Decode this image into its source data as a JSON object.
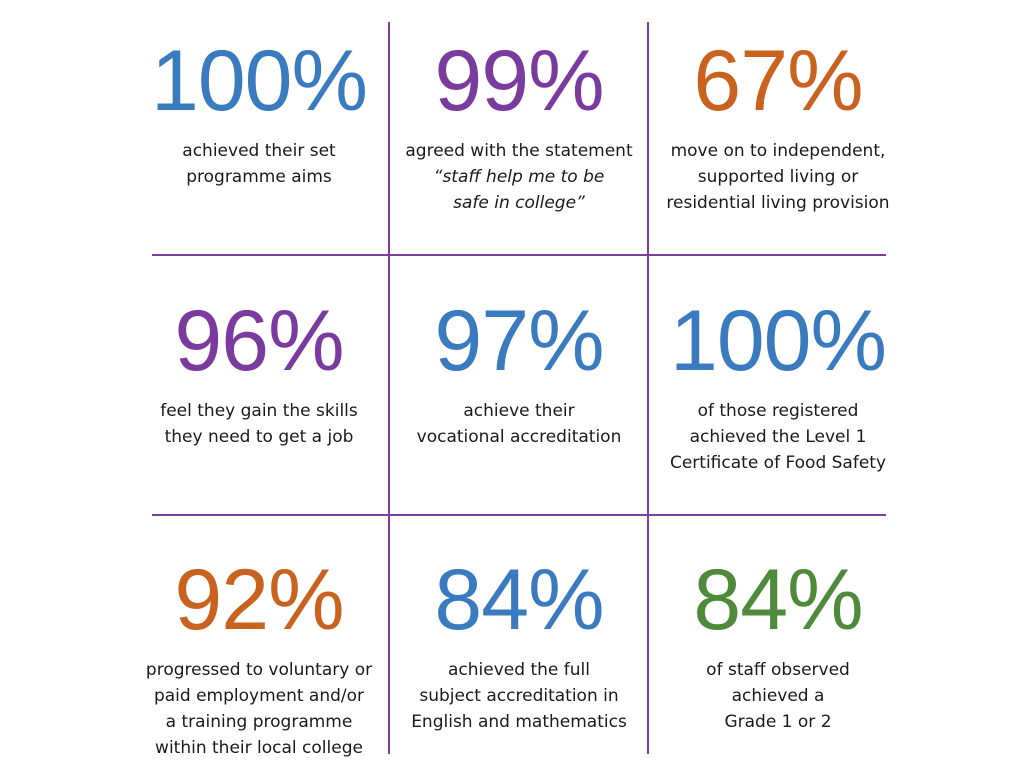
{
  "colors": {
    "divider": "#7a3fa0",
    "blue": "#3a7bbf",
    "purple": "#7b3a9e",
    "orange": "#c8621e",
    "green": "#4e8a3a"
  },
  "cells": [
    {
      "value": "100%",
      "color": "#3a7bbf",
      "lines": [
        "achieved their set",
        "programme aims"
      ]
    },
    {
      "value": "99%",
      "color": "#7b3a9e",
      "lines": [
        "agreed with the statement"
      ],
      "quote_lines": [
        "“staff help me to be",
        "safe in college”"
      ]
    },
    {
      "value": "67%",
      "color": "#c8621e",
      "lines": [
        "move on to independent,",
        "supported living or",
        "residential living provision"
      ]
    },
    {
      "value": "96%",
      "color": "#7b3a9e",
      "lines": [
        "feel they gain the skills",
        "they need to get a job"
      ]
    },
    {
      "value": "97%",
      "color": "#3a7bbf",
      "lines": [
        "achieve their",
        "vocational accreditation"
      ]
    },
    {
      "value": "100%",
      "color": "#3a7bbf",
      "lines": [
        "of those registered",
        "achieved the Level 1",
        "Certificate of Food Safety"
      ]
    },
    {
      "value": "92%",
      "color": "#c8621e",
      "lines": [
        "progressed to voluntary or",
        "paid employment and/or",
        "a training programme",
        "within their local college"
      ]
    },
    {
      "value": "84%",
      "color": "#3a7bbf",
      "lines": [
        "achieved the full",
        "subject accreditation in",
        "English and mathematics"
      ]
    },
    {
      "value": "84%",
      "color": "#4e8a3a",
      "lines": [
        "of staff observed",
        "achieved a",
        "Grade 1 or 2"
      ]
    }
  ]
}
